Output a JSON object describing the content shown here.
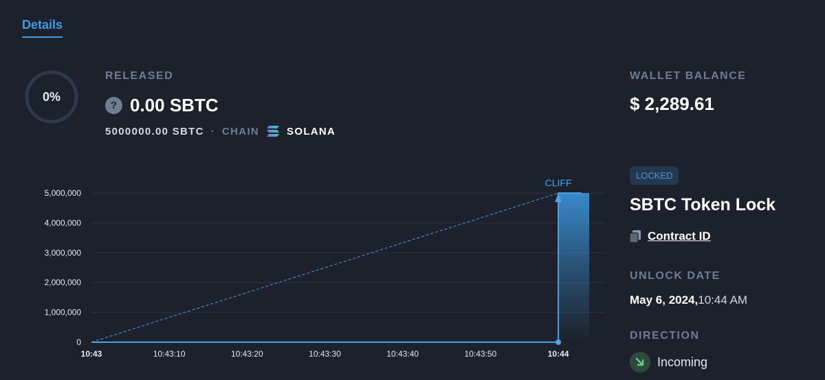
{
  "tabs": {
    "details_label": "Details"
  },
  "progress": {
    "percent_label": "0%",
    "percent_value": 0
  },
  "released": {
    "label": "RELEASED",
    "help_icon": "question-circle-icon",
    "value": "0.00 SBTC"
  },
  "meta": {
    "total": "5000000.00 SBTC",
    "separator": "·",
    "chain_label": "CHAIN",
    "chain_icon": "solana-icon",
    "chain_name": "SOLANA"
  },
  "wallet": {
    "label": "WALLET BALANCE",
    "value": "$ 2,289.61"
  },
  "lock": {
    "status_badge": "LOCKED",
    "title": "SBTC Token Lock",
    "copy_icon": "copy-icon",
    "contract_link": "Contract ID"
  },
  "unlock": {
    "label": "UNLOCK DATE",
    "date": "May 6, 2024,",
    "time": "10:44 AM"
  },
  "direction": {
    "label": "DIRECTION",
    "icon": "arrow-down-right-icon",
    "value": "Incoming"
  },
  "colors": {
    "accent": "#3d9be6",
    "incoming": "#5fd08a",
    "background": "#1c212b"
  },
  "chart_data": {
    "type": "line",
    "annotation": "CLIFF",
    "x_ticks": [
      "10:43",
      "10:43:10",
      "10:43:20",
      "10:43:30",
      "10:43:40",
      "10:43:50",
      "10:44"
    ],
    "x_tick_seconds": [
      0,
      10,
      20,
      30,
      40,
      50,
      60
    ],
    "x_bold_ticks": [
      "10:43",
      "10:44"
    ],
    "y_ticks": [
      "0",
      "1,000,000",
      "2,000,000",
      "3,000,000",
      "4,000,000",
      "5,000,000"
    ],
    "y_tick_values": [
      0,
      1000000,
      2000000,
      3000000,
      4000000,
      5000000
    ],
    "ylim": [
      0,
      5000000
    ],
    "xlim_seconds": [
      0,
      66
    ],
    "grid": true,
    "series": [
      {
        "style": "solid",
        "points": [
          [
            0,
            0
          ],
          [
            60,
            0
          ],
          [
            60,
            5000000
          ],
          [
            63,
            5000000
          ]
        ]
      },
      {
        "style": "dashed",
        "points": [
          [
            0,
            0
          ],
          [
            60,
            5000000
          ]
        ]
      }
    ],
    "cliff_seconds": 60,
    "cliff_value": 5000000
  }
}
